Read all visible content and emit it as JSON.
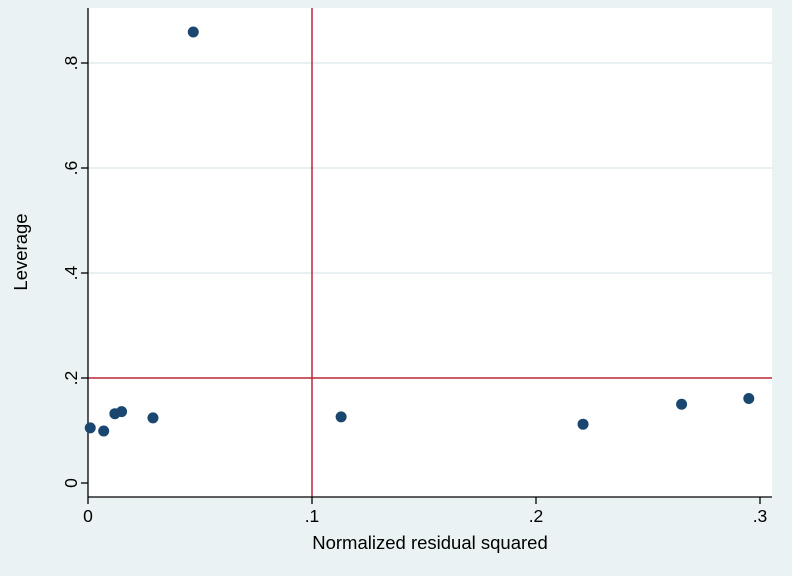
{
  "figure": {
    "background": "#eaf2f3",
    "plot_background": "#ffffff",
    "axis_color": "#000000"
  },
  "chart_data": {
    "type": "scatter",
    "title": "",
    "xlabel": "Normalized residual squared",
    "ylabel": "Leverage",
    "x_range": [
      -0.005,
      0.305
    ],
    "y_range": [
      -0.027,
      0.9
    ],
    "x_ticks": [
      {
        "v": 0,
        "label": "0"
      },
      {
        "v": 0.1,
        "label": ".1"
      },
      {
        "v": 0.2,
        "label": ".2"
      },
      {
        "v": 0.3,
        "label": ".3"
      }
    ],
    "y_ticks": [
      {
        "v": 0,
        "label": "0"
      },
      {
        "v": 0.2,
        "label": ".2"
      },
      {
        "v": 0.4,
        "label": ".4"
      },
      {
        "v": 0.6,
        "label": ".6"
      },
      {
        "v": 0.8,
        "label": ".8"
      }
    ],
    "grid": "horizontal-only",
    "grid_y": [
      0.2,
      0.4,
      0.6,
      0.8
    ],
    "grid_color": "#d9e6eb",
    "ref_lines": {
      "x": 0.1,
      "y": 0.2,
      "color": "#be2838"
    },
    "marker_color": "#1a476f",
    "marker_radius": 5.5,
    "legend": "none",
    "points": [
      {
        "x": 0.047,
        "y": 0.859
      },
      {
        "x": 0.001,
        "y": 0.105
      },
      {
        "x": 0.007,
        "y": 0.099
      },
      {
        "x": 0.012,
        "y": 0.132
      },
      {
        "x": 0.015,
        "y": 0.136
      },
      {
        "x": 0.029,
        "y": 0.124
      },
      {
        "x": 0.113,
        "y": 0.126
      },
      {
        "x": 0.221,
        "y": 0.112
      },
      {
        "x": 0.265,
        "y": 0.15
      },
      {
        "x": 0.295,
        "y": 0.161
      }
    ]
  }
}
